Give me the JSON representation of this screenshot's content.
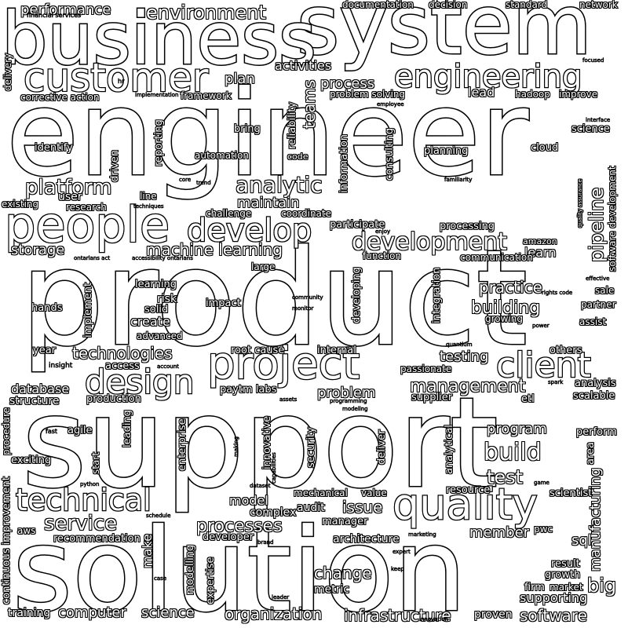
{
  "words": {
    "system": "system",
    "business": "business",
    "engineer": "engineer",
    "product": "product",
    "support": "support",
    "solution": "solution",
    "people": "people",
    "customer": "customer",
    "engineering": "engineering",
    "project": "project",
    "quality": "quality",
    "client": "client",
    "design": "design",
    "technical": "technical",
    "develop": "develop",
    "development": "development",
    "analytic": "analytic",
    "platform": "platform",
    "machine_learning": "machine learning",
    "technologies": "technologies",
    "management": "management",
    "build": "build",
    "test": "test",
    "service": "service",
    "processes": "processes",
    "change": "change",
    "organization": "organization",
    "infrastructure": "infrastructure",
    "computer": "computer",
    "science": "science",
    "software": "software",
    "pipeline": "pipeline",
    "building": "building",
    "practice": "practice",
    "testing": "testing",
    "program": "program",
    "environment": "environment",
    "performance": "performance",
    "activities": "activities",
    "process": "process",
    "lead": "lead",
    "plan": "plan",
    "teams": "teams",
    "maintain": "maintain",
    "storage": "storage",
    "database": "database",
    "structure": "structure",
    "problem": "problem",
    "issue": "issue",
    "model": "model",
    "complex": "complex",
    "audit": "audit",
    "manager": "manager",
    "member": "member",
    "sql": "sql",
    "big": "big",
    "manufacturing": "manufacturing",
    "supporting": "supporting",
    "proven": "proven",
    "training": "training",
    "continuous_improvement": "continuous improvement",
    "recommendation": "recommendation",
    "make": "make",
    "expertise": "expertise",
    "modelling": "modelling",
    "developer": "developer",
    "architecture": "architecture",
    "metric": "metric",
    "create": "create",
    "risk": "risk",
    "solid": "solid",
    "impact": "impact",
    "advanced": "advanced",
    "learning": "learning",
    "implement": "implement",
    "hands": "hands",
    "year": "year",
    "access": "access",
    "production": "production",
    "agile": "agile",
    "leading": "leading",
    "enterprise": "enterprise",
    "innovative": "innovative",
    "security": "security",
    "deliver": "deliver",
    "analytical": "analytical",
    "resource": "resource",
    "mechanical": "mechanical",
    "value": "value",
    "scientist": "scientist",
    "pwc": "pwc",
    "result": "result",
    "growth": "growth",
    "market": "market",
    "firm": "firm",
    "perform": "perform",
    "area": "area",
    "scalable": "scalable",
    "analysis": "analysis",
    "others": "others",
    "etl": "etl",
    "supplier": "supplier",
    "paytm_labs": "paytm labs",
    "root_cause": "root cause",
    "internal": "internal",
    "passionate": "passionate",
    "integration": "integration",
    "developing": "developing",
    "growing": "growing",
    "sale": "sale",
    "partner": "partner",
    "assist": "assist",
    "learn": "learn",
    "amazon": "amazon",
    "communication": "communication",
    "processing": "processing",
    "participate": "participate",
    "function": "function",
    "large": "large",
    "coordinate": "coordinate",
    "challenge": "challenge",
    "line": "line",
    "user": "user",
    "research": "research",
    "existing": "existing",
    "identify": "identify",
    "driven": "driven",
    "reporting": "reporting",
    "automation": "automation",
    "bring": "bring",
    "reliability": "reliability",
    "code": "code",
    "information": "information",
    "consulting": "consulting",
    "planning": "planning",
    "cloud": "cloud",
    "science2": "science",
    "hadoop": "hadoop",
    "improve": "improve",
    "problem_solving": "problem solving",
    "framework": "framework",
    "corrective_action": "corrective action",
    "delivery": "delivery",
    "documentation": "documentation",
    "decision": "decision",
    "standard": "standard",
    "network": "network",
    "financial_services": "financial services",
    "focused": "focused",
    "software_development": "software development",
    "exciting": "exciting",
    "procedure": "procedure",
    "aws": "aws",
    "start": "start",
    "fast": "fast",
    "python": "python",
    "schedule": "schedule",
    "dataset": "dataset",
    "making": "making",
    "capabilities": "capabilities",
    "modeling": "modeling",
    "programming": "programming",
    "assets": "assets",
    "quantium": "quantium",
    "power": "power",
    "spark": "spark",
    "marketing": "marketing",
    "expert": "expert",
    "keep": "keep",
    "brand": "brand",
    "case": "case",
    "leader": "leader",
    "innovation": "innovation",
    "employee": "employee",
    "implementation": "implementation",
    "familiarity": "familiarity",
    "quality_assurance": "quality assurance",
    "interface": "interface",
    "core": "core",
    "trend": "trend",
    "techniques": "techniques",
    "community": "community",
    "monitor": "monitor",
    "account": "account",
    "insight": "insight",
    "rights_code": "rights code",
    "effective": "effective",
    "game": "game",
    "hr": "hr",
    "ontarians_act": "ontarians act",
    "accessibility_ontarians": "accessibility ontarians",
    "enjoy": "enjoy"
  }
}
